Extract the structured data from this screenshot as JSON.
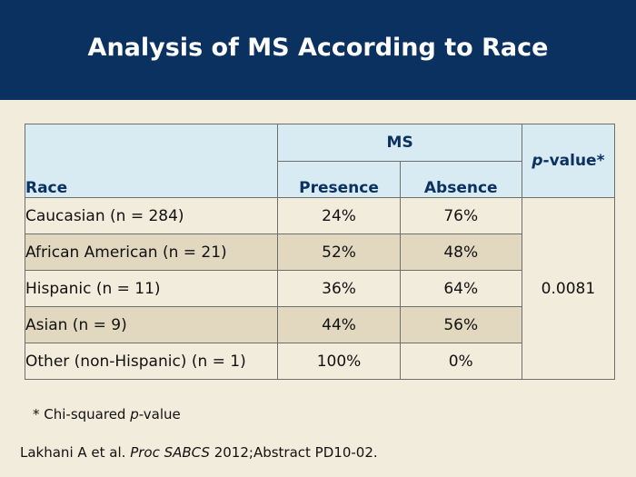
{
  "slide": {
    "title": "Analysis of MS According to Race"
  },
  "table": {
    "headers": {
      "race": "Race",
      "group": "MS",
      "presence": "Presence",
      "absence": "Absence",
      "pvalue_italic": "p",
      "pvalue_rest": "-value*"
    },
    "rows": [
      {
        "race": "Caucasian (n = 284)",
        "presence": "24%",
        "absence": "76%"
      },
      {
        "race": "African American (n = 21)",
        "presence": "52%",
        "absence": "48%"
      },
      {
        "race": "Hispanic (n = 11)",
        "presence": "36%",
        "absence": "64%"
      },
      {
        "race": "Asian (n = 9)",
        "presence": "44%",
        "absence": "56%"
      },
      {
        "race": "Other (non-Hispanic) (n = 1)",
        "presence": "100%",
        "absence": "0%"
      }
    ],
    "pvalue": "0.0081"
  },
  "footnote": {
    "prefix": "* Chi-squared ",
    "italic": "p",
    "suffix": "-value"
  },
  "citation": {
    "authors": "Lakhani A et al. ",
    "journal": "Proc SABCS",
    "rest": " 2012;Abstract PD10-02."
  }
}
